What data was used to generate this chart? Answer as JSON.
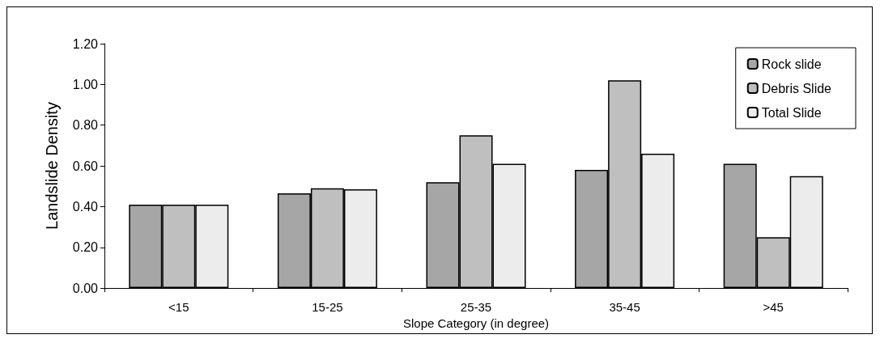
{
  "chart_data": {
    "type": "bar",
    "xlabel": "Slope Category (in degree)",
    "ylabel": "Landslide Density",
    "categories": [
      "<15",
      "15-25",
      "25-35",
      "35-45",
      ">45"
    ],
    "series": [
      {
        "name": "Rock slide",
        "color": "#a6a6a6",
        "values": [
          0.41,
          0.465,
          0.52,
          0.58,
          0.61
        ]
      },
      {
        "name": "Debris Slide",
        "color": "#bfbfbf",
        "values": [
          0.41,
          0.49,
          0.75,
          1.02,
          0.25
        ]
      },
      {
        "name": "Total Slide",
        "color": "#ececec",
        "values": [
          0.41,
          0.485,
          0.61,
          0.66,
          0.55
        ]
      }
    ],
    "ylim": [
      0,
      1.2
    ],
    "yticks": [
      {
        "value": 0,
        "label": "0.00"
      },
      {
        "value": 0.2,
        "label": "0.20"
      },
      {
        "value": 0.4,
        "label": "0.40"
      },
      {
        "value": 0.6,
        "label": "0.60"
      },
      {
        "value": 0.8,
        "label": "0.80"
      },
      {
        "value": 1,
        "label": "1.00"
      },
      {
        "value": 1.2,
        "label": "1.20"
      }
    ],
    "grid": false,
    "legend": "top right"
  }
}
